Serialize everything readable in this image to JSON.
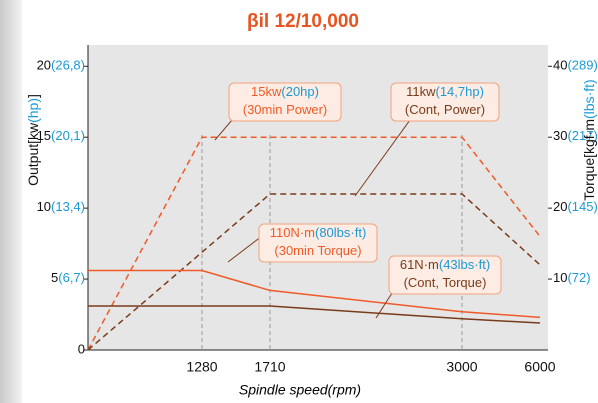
{
  "chart_data": {
    "type": "line",
    "title": "βil 12/10,000",
    "title_color": "#e8531f",
    "ylabel_parts": [
      {
        "text": "Output[kw",
        "color": "#111111"
      },
      {
        "text": "(hp)",
        "color": "#1a9ad6"
      },
      {
        "text": "]",
        "color": "#111111"
      }
    ],
    "y2label_parts": [
      {
        "text": "Torque[kgf·m",
        "color": "#111111"
      },
      {
        "text": "(lbs·ft)",
        "color": "#1a9ad6"
      }
    ],
    "xlabel": "Spindle speed(rpm)",
    "xlim": [
      0,
      6000
    ],
    "xticks": [
      1280,
      1710,
      3000,
      6000
    ],
    "ylim": [
      0,
      21.5
    ],
    "yticks": [
      0,
      {
        "value": 5,
        "label": "5",
        "secondary_label": "(6,7)"
      },
      {
        "value": 10,
        "label": "10",
        "secondary_label": "(13,4)"
      },
      {
        "value": 15,
        "label": "15",
        "secondary_label": "(20,1)"
      },
      {
        "value": 20,
        "label": "20",
        "secondary_label": "(26,8)"
      }
    ],
    "y2lim": [
      0,
      43
    ],
    "y2ticks": [
      {
        "value": 10,
        "label": "10",
        "secondary_label": "(72)"
      },
      {
        "value": 20,
        "label": "20",
        "secondary_label": "(145)"
      },
      {
        "value": 30,
        "label": "30",
        "secondary_label": "(217)"
      },
      {
        "value": 40,
        "label": "40",
        "secondary_label": "(289)"
      }
    ],
    "tick_secondary_color": "#1a9ad6",
    "grid": true,
    "series": [
      {
        "color": "#f05a28",
        "dashed": true,
        "x": [
          0,
          1280,
          3000,
          6000
        ],
        "values": [
          0,
          15,
          15,
          8
        ]
      },
      {
        "color": "#7a3b1a",
        "dashed": true,
        "x": [
          0,
          1710,
          3000,
          6000
        ],
        "values": [
          0,
          11,
          11,
          6
        ]
      },
      {
        "color": "#f05a28",
        "dashed": false,
        "axis": "y2",
        "x": [
          0,
          1280,
          1710,
          3000,
          6000
        ],
        "values": [
          11.2,
          11.2,
          8.4,
          5.4,
          4.6
        ]
      },
      {
        "color": "#7a3b1a",
        "dashed": false,
        "axis": "y2",
        "x": [
          0,
          1710,
          3000,
          6000
        ],
        "values": [
          6.2,
          6.2,
          4.4,
          3.8
        ]
      }
    ],
    "annotations": [
      {
        "lines": [
          [
            {
              "text": "15kw",
              "color": "#f05a28"
            },
            {
              "text": "(20hp)",
              "color": "#1a9ad6"
            }
          ],
          [
            {
              "text": "(30min Power)",
              "color": "#f05a28"
            }
          ]
        ]
      },
      {
        "lines": [
          [
            {
              "text": "11kw",
              "color": "#7a3b1a"
            },
            {
              "text": "(14,7hp)",
              "color": "#1a9ad6"
            }
          ],
          [
            {
              "text": "(Cont, Power)",
              "color": "#7a3b1a"
            }
          ]
        ]
      },
      {
        "lines": [
          [
            {
              "text": "110N·m",
              "color": "#f05a28"
            },
            {
              "text": "(80lbs·ft)",
              "color": "#1a9ad6"
            }
          ],
          [
            {
              "text": "(30min Torque)",
              "color": "#f05a28"
            }
          ]
        ]
      },
      {
        "lines": [
          [
            {
              "text": "61N·m",
              "color": "#7a3b1a"
            },
            {
              "text": "(43lbs·ft)",
              "color": "#1a9ad6"
            }
          ],
          [
            {
              "text": "(Cont, Torque)",
              "color": "#7a3b1a"
            }
          ]
        ]
      }
    ]
  }
}
